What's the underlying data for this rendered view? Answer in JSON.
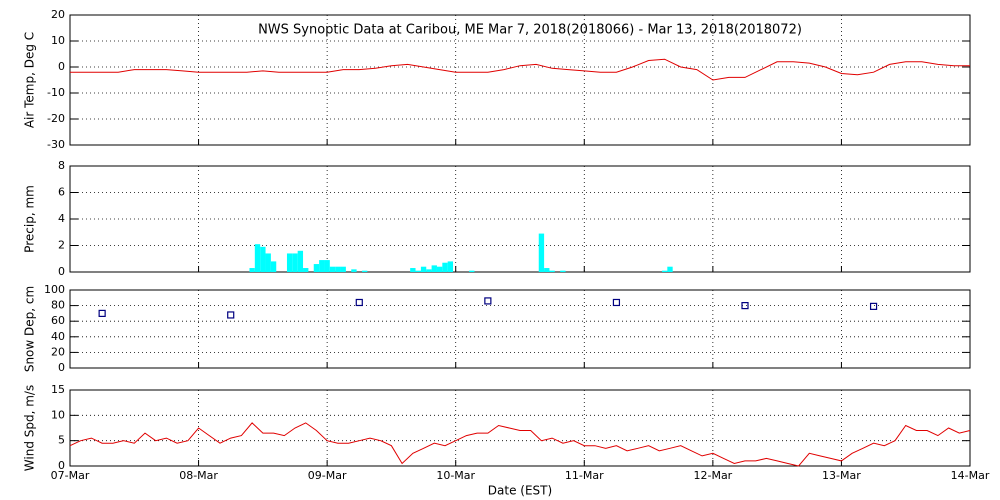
{
  "chart_data": [
    {
      "type": "line",
      "title": "NWS Synoptic Data at Caribou, ME   Mar  7, 2018(2018066) - Mar 13, 2018(2018072)",
      "ylabel": "Air Temp, Deg C",
      "xlim": [
        0,
        168
      ],
      "xticks": [
        0,
        24,
        48,
        72,
        96,
        120,
        144,
        168
      ],
      "ylim": [
        -30,
        20
      ],
      "yticks": [
        -30,
        -20,
        -10,
        0,
        10,
        20
      ],
      "grid": true,
      "series": [
        {
          "color": "#e00000",
          "x": [
            0,
            3,
            6,
            9,
            12,
            15,
            18,
            21,
            24,
            27,
            30,
            33,
            36,
            39,
            42,
            45,
            48,
            51,
            54,
            57,
            60,
            63,
            66,
            69,
            72,
            75,
            78,
            81,
            84,
            87,
            90,
            93,
            96,
            99,
            102,
            105,
            108,
            111,
            114,
            117,
            120,
            123,
            126,
            129,
            132,
            135,
            138,
            141,
            144,
            147,
            150,
            153,
            156,
            159,
            162,
            165,
            168
          ],
          "values": [
            -2,
            -2,
            -2,
            -2,
            -1,
            -1,
            -1,
            -1.5,
            -2,
            -2,
            -2,
            -2,
            -1.5,
            -2,
            -2,
            -2,
            -2,
            -1,
            -1,
            -0.5,
            0.5,
            1,
            0,
            -1,
            -2,
            -2,
            -2,
            -1,
            0.5,
            1,
            -0.5,
            -1,
            -1.5,
            -2,
            -2,
            0,
            2.5,
            3,
            0,
            -1,
            -5,
            -4,
            -4,
            -1,
            2,
            2,
            1.5,
            0,
            -2.5,
            -3,
            -2,
            1,
            2,
            2,
            1,
            0.5,
            0.5
          ]
        }
      ]
    },
    {
      "type": "bar",
      "ylabel": "Precip, mm",
      "xlim": [
        0,
        168
      ],
      "xticks": [
        0,
        24,
        48,
        72,
        96,
        120,
        144,
        168
      ],
      "ylim": [
        0,
        8
      ],
      "yticks": [
        0,
        2,
        4,
        6,
        8
      ],
      "grid": true,
      "series": [
        {
          "color": "#00ffff",
          "x": [
            34,
            35,
            36,
            37,
            38,
            41,
            42,
            43,
            44,
            46,
            47,
            48,
            49,
            50,
            51,
            53,
            55,
            64,
            65,
            66,
            67,
            68,
            69,
            70,
            71,
            75,
            88,
            89,
            90,
            92,
            111,
            112
          ],
          "values": [
            0.3,
            2.1,
            1.9,
            1.4,
            0.8,
            1.4,
            1.4,
            1.6,
            0.3,
            0.6,
            0.9,
            0.9,
            0.4,
            0.4,
            0.4,
            0.2,
            0.1,
            0.3,
            0.1,
            0.4,
            0.2,
            0.5,
            0.4,
            0.7,
            0.8,
            0.1,
            2.9,
            0.3,
            0.1,
            0.1,
            0.1,
            0.4
          ]
        }
      ]
    },
    {
      "type": "scatter",
      "ylabel": "Snow Dep, cm",
      "xlim": [
        0,
        168
      ],
      "xticks": [
        0,
        24,
        48,
        72,
        96,
        120,
        144,
        168
      ],
      "ylim": [
        0,
        100
      ],
      "yticks": [
        0,
        20,
        40,
        60,
        80,
        100
      ],
      "grid": true,
      "series": [
        {
          "color": "#000080",
          "x": [
            6,
            30,
            54,
            78,
            102,
            126,
            150
          ],
          "values": [
            70,
            68,
            84,
            86,
            84,
            80,
            79
          ]
        }
      ]
    },
    {
      "type": "line",
      "ylabel": "Wind Spd, m/s",
      "xlabel": "Date (EST)",
      "xlim": [
        0,
        168
      ],
      "xticks": [
        {
          "value": 0,
          "label": "07-Mar"
        },
        {
          "value": 24,
          "label": "08-Mar"
        },
        {
          "value": 48,
          "label": "09-Mar"
        },
        {
          "value": 72,
          "label": "10-Mar"
        },
        {
          "value": 96,
          "label": "11-Mar"
        },
        {
          "value": 120,
          "label": "12-Mar"
        },
        {
          "value": 144,
          "label": "13-Mar"
        },
        {
          "value": 168,
          "label": "14-Mar"
        }
      ],
      "ylim": [
        0,
        15
      ],
      "yticks": [
        0,
        5,
        10,
        15
      ],
      "grid": true,
      "series": [
        {
          "color": "#e00000",
          "x": [
            0,
            2,
            4,
            6,
            8,
            10,
            12,
            14,
            16,
            18,
            20,
            22,
            24,
            26,
            28,
            30,
            32,
            34,
            36,
            38,
            40,
            42,
            44,
            46,
            48,
            50,
            52,
            54,
            56,
            58,
            60,
            62,
            64,
            66,
            68,
            70,
            72,
            74,
            76,
            78,
            80,
            82,
            84,
            86,
            88,
            90,
            92,
            94,
            96,
            98,
            100,
            102,
            104,
            106,
            108,
            110,
            112,
            114,
            116,
            118,
            120,
            122,
            124,
            126,
            128,
            130,
            132,
            134,
            136,
            138,
            140,
            142,
            144,
            146,
            148,
            150,
            152,
            154,
            156,
            158,
            160,
            162,
            164,
            166,
            168
          ],
          "values": [
            4,
            5,
            5.5,
            4.5,
            4.5,
            5,
            4.5,
            6.5,
            5,
            5.5,
            4.5,
            5,
            7.5,
            6,
            4.5,
            5.5,
            6,
            8.5,
            6.5,
            6.5,
            6,
            7.5,
            8.5,
            7,
            5,
            4.5,
            4.5,
            5,
            5.5,
            5,
            4,
            0.5,
            2.5,
            3.5,
            4.5,
            4,
            5,
            6,
            6.5,
            6.5,
            8,
            7.5,
            7,
            7,
            5,
            5.5,
            4.5,
            5,
            4,
            4,
            3.5,
            4,
            3,
            3.5,
            4,
            3,
            3.5,
            4,
            3,
            2,
            2.5,
            1.5,
            0.5,
            1,
            1,
            1.5,
            1,
            0.5,
            0,
            2.5,
            2,
            1.5,
            1,
            2.5,
            3.5,
            4.5,
            4,
            5,
            8,
            7,
            7,
            6,
            7.5,
            6.5,
            7
          ]
        }
      ]
    }
  ]
}
